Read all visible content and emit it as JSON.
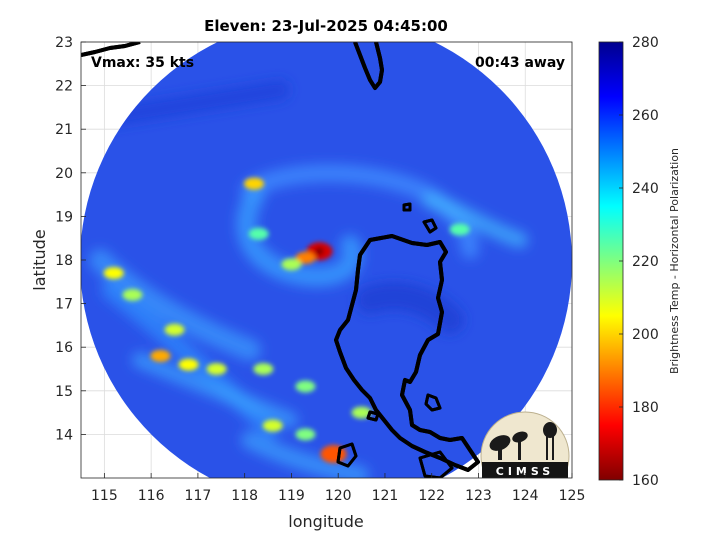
{
  "chart_data": {
    "type": "heatmap",
    "title": "Eleven: 23-Jul-2025 04:45:00",
    "xlabel": "longitude",
    "ylabel": "latitude",
    "xlim": [
      114.5,
      125
    ],
    "ylim": [
      13,
      23
    ],
    "x_ticks": [
      "115",
      "116",
      "117",
      "118",
      "119",
      "120",
      "121",
      "122",
      "123",
      "124",
      "125"
    ],
    "y_ticks": [
      "14",
      "15",
      "16",
      "17",
      "18",
      "19",
      "20",
      "21",
      "22",
      "23"
    ],
    "grid": true,
    "annotations": {
      "vmax": "Vmax: 35 kts",
      "away": "00:43 away"
    },
    "storm_center": {
      "lon": 119.6,
      "lat": 18.2
    },
    "colorbar": {
      "label": "Brightness Temp - Horizontal Polarization",
      "min": 160,
      "max": 280,
      "ticks": [
        "160",
        "180",
        "200",
        "220",
        "240",
        "260",
        "280"
      ],
      "colormap": "jet"
    },
    "warm_cells": [
      {
        "lon": 119.6,
        "lat": 18.2,
        "value": 170
      },
      {
        "lon": 119.3,
        "lat": 18.05,
        "value": 190
      },
      {
        "lon": 119.0,
        "lat": 17.9,
        "value": 215
      },
      {
        "lon": 118.2,
        "lat": 19.75,
        "value": 200
      },
      {
        "lon": 115.2,
        "lat": 17.7,
        "value": 205
      },
      {
        "lon": 115.6,
        "lat": 17.2,
        "value": 215
      },
      {
        "lon": 116.5,
        "lat": 16.4,
        "value": 210
      },
      {
        "lon": 116.2,
        "lat": 15.8,
        "value": 195
      },
      {
        "lon": 116.8,
        "lat": 15.6,
        "value": 205
      },
      {
        "lon": 117.4,
        "lat": 15.5,
        "value": 210
      },
      {
        "lon": 118.4,
        "lat": 15.5,
        "value": 215
      },
      {
        "lon": 119.3,
        "lat": 15.1,
        "value": 220
      },
      {
        "lon": 118.6,
        "lat": 14.2,
        "value": 210
      },
      {
        "lon": 119.3,
        "lat": 14.0,
        "value": 220
      },
      {
        "lon": 119.9,
        "lat": 13.55,
        "value": 185
      },
      {
        "lon": 120.5,
        "lat": 14.5,
        "value": 215
      },
      {
        "lon": 122.6,
        "lat": 18.7,
        "value": 225
      },
      {
        "lon": 118.3,
        "lat": 18.6,
        "value": 225
      }
    ]
  },
  "logo": {
    "text": "CIMSS"
  }
}
